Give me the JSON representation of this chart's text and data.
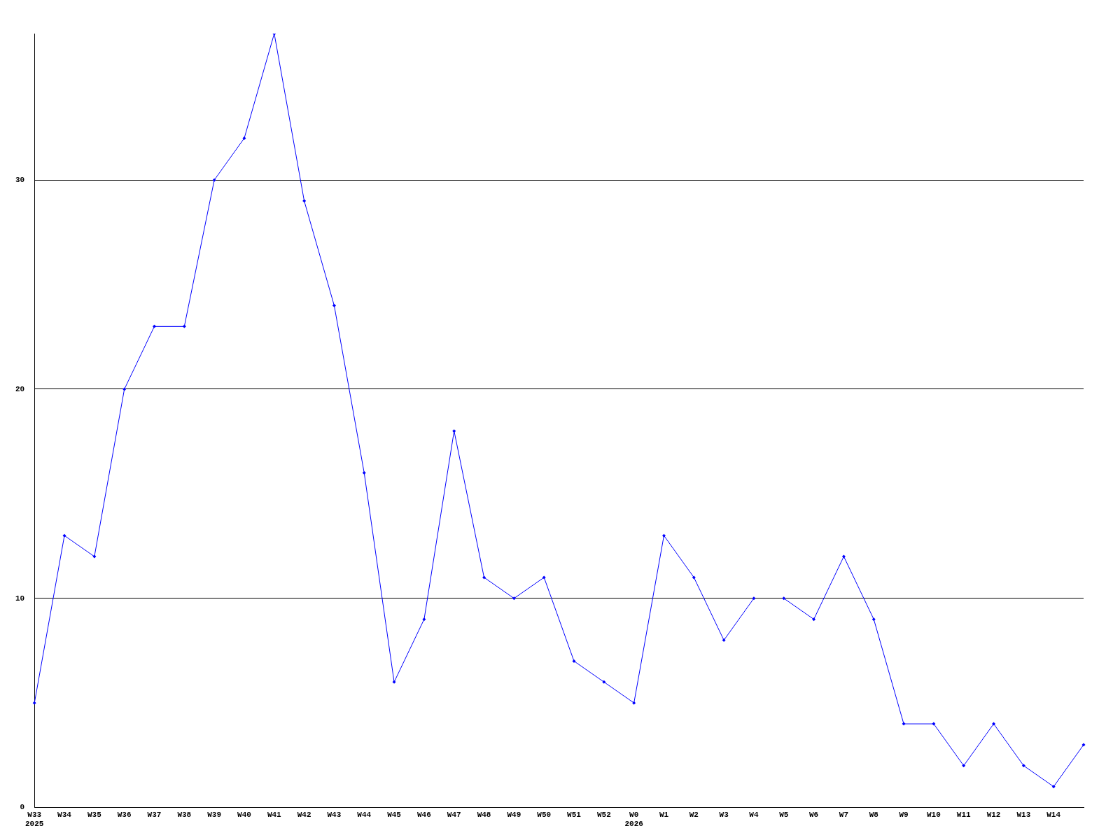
{
  "chart_data": {
    "type": "line",
    "categories": [
      "W33\n2025",
      "W34",
      "W35",
      "W36",
      "W37",
      "W38",
      "W39",
      "W40",
      "W41",
      "W42",
      "W43",
      "W44",
      "W45",
      "W46",
      "W47",
      "W48",
      "W49",
      "W50",
      "W51",
      "W52",
      "W0\n2026",
      "W1",
      "W2",
      "W3",
      "W4",
      "W5",
      "W6",
      "W7",
      "W8",
      "W9",
      "W10",
      "W11",
      "W12",
      "W13",
      "W14",
      null
    ],
    "series": [
      {
        "color": "#0000ff",
        "values": [
          5,
          13,
          12,
          20,
          23,
          23,
          30,
          32,
          37,
          29,
          24,
          16,
          6,
          9,
          18,
          11,
          10,
          11,
          7,
          6,
          5,
          13,
          11,
          8,
          10,
          null,
          null,
          null,
          null,
          null,
          null,
          null,
          null,
          null,
          null,
          null
        ]
      },
      {
        "color": "#0000ff",
        "values": [
          null,
          null,
          null,
          null,
          null,
          null,
          null,
          null,
          null,
          null,
          null,
          null,
          null,
          null,
          null,
          null,
          null,
          null,
          null,
          null,
          null,
          null,
          null,
          null,
          null,
          10,
          9,
          12,
          9,
          4,
          4,
          2,
          4,
          2,
          1,
          3
        ]
      }
    ],
    "ylim": [
      0,
      37
    ],
    "yticks": [
      0,
      10,
      20,
      30
    ],
    "grid": "y",
    "legend": false,
    "marker": "diamond",
    "line_style": "solid"
  }
}
